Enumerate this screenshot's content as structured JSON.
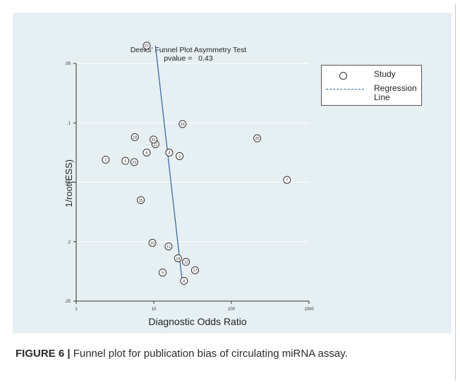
{
  "caption": {
    "label": "FIGURE 6 |",
    "text": " Funnel plot for publication bias of circulating miRNA assay."
  },
  "colors": {
    "panel": "#e6eff2",
    "regression": "#2e5fa8",
    "marker": "#333333"
  },
  "chart_data": {
    "type": "scatter",
    "title": "Deeks' Funnel Plot Asymmetry Test",
    "subtitle": "pvalue =   0.43",
    "xlabel": "Diagnostic Odds Ratio",
    "ylabel": "1/root(ESS)",
    "x_scale": "log",
    "xlim": [
      1,
      1000
    ],
    "ylim": [
      0.05,
      0.25
    ],
    "y_inverted": true,
    "x_ticks": [
      "1",
      "10",
      "100",
      "1000"
    ],
    "y_ticks": [
      ".05",
      ".1",
      ".15",
      ".2",
      ".25"
    ],
    "x_tick_values": [
      1,
      10,
      100,
      1000
    ],
    "y_tick_values": [
      0.05,
      0.1,
      0.15,
      0.2,
      0.25
    ],
    "grid": "horizontal",
    "legend": {
      "position": "top-right",
      "entries": [
        {
          "label": "Study",
          "marker": "circle"
        },
        {
          "label": "Regression Line",
          "marker": "dashed-line"
        }
      ]
    },
    "points": [
      {
        "label": "1",
        "x": 4.3,
        "y": 0.132
      },
      {
        "label": "2",
        "x": 2.4,
        "y": 0.131
      },
      {
        "label": "3",
        "x": 21.5,
        "y": 0.128
      },
      {
        "label": "4",
        "x": 15.8,
        "y": 0.125
      },
      {
        "label": "5",
        "x": 8.1,
        "y": 0.125
      },
      {
        "label": "7",
        "x": 520,
        "y": 0.148
      },
      {
        "label": "8",
        "x": 24.5,
        "y": 0.233
      },
      {
        "label": "9",
        "x": 13,
        "y": 0.226
      },
      {
        "label": "10",
        "x": 9.6,
        "y": 0.201
      },
      {
        "label": "11",
        "x": 15.5,
        "y": 0.204
      },
      {
        "label": "13",
        "x": 26,
        "y": 0.217
      },
      {
        "label": "15",
        "x": 6.8,
        "y": 0.165
      },
      {
        "label": "16",
        "x": 23.5,
        "y": 0.101
      },
      {
        "label": "17",
        "x": 34,
        "y": 0.224
      },
      {
        "label": "18",
        "x": 5.7,
        "y": 0.112
      },
      {
        "label": "19",
        "x": 20.5,
        "y": 0.214
      },
      {
        "label": "20",
        "x": 215,
        "y": 0.113
      },
      {
        "label": "21",
        "x": 10.5,
        "y": 0.118
      },
      {
        "label": "22",
        "x": 8.1,
        "y": 0.035
      },
      {
        "label": "23",
        "x": 5.6,
        "y": 0.133
      },
      {
        "label": "31",
        "x": 9.9,
        "y": 0.114
      }
    ],
    "regression_line": [
      {
        "x": 10.5,
        "y": 0.035
      },
      {
        "x": 23,
        "y": 0.231
      }
    ]
  }
}
